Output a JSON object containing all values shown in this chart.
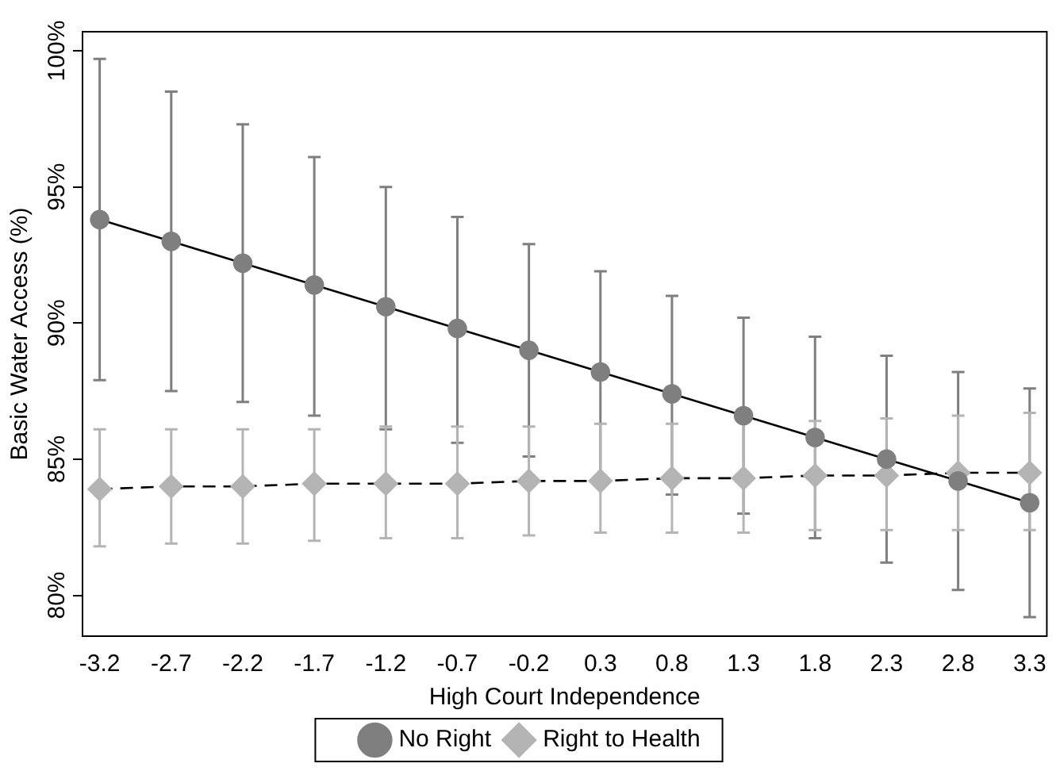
{
  "chart_data": {
    "type": "line",
    "xlabel": "High Court Independence",
    "ylabel": "Basic Water Access (%)",
    "x": [
      -3.2,
      -2.7,
      -2.2,
      -1.7,
      -1.2,
      -0.7,
      -0.2,
      0.3,
      0.8,
      1.3,
      1.8,
      2.3,
      2.8,
      3.3
    ],
    "xlim": [
      -3.32,
      3.42
    ],
    "xticks": [
      -3.2,
      -2.7,
      -2.2,
      -1.7,
      -1.2,
      -0.7,
      -0.2,
      0.3,
      0.8,
      1.3,
      1.8,
      2.3,
      2.8,
      3.3
    ],
    "ylim": [
      78.5,
      100.7
    ],
    "yticks": [
      {
        "value": 80,
        "label": "80%"
      },
      {
        "value": 85,
        "label": "85%"
      },
      {
        "value": 90,
        "label": "90%"
      },
      {
        "value": 95,
        "label": "95%"
      },
      {
        "value": 100,
        "label": "100%"
      }
    ],
    "grid": false,
    "legend": "bottom",
    "series": [
      {
        "name": "No Right",
        "color": "#7f7f7f",
        "marker": "circle",
        "line_style": "solid",
        "values": [
          93.8,
          93.0,
          92.2,
          91.4,
          90.6,
          89.8,
          89.0,
          88.2,
          87.4,
          86.6,
          85.8,
          85.0,
          84.2,
          83.4
        ],
        "errors": [
          [
            87.9,
            99.7
          ],
          [
            87.5,
            98.5
          ],
          [
            87.1,
            97.3
          ],
          [
            86.6,
            96.1
          ],
          [
            86.1,
            95.0
          ],
          [
            85.6,
            93.9
          ],
          [
            85.1,
            92.9
          ],
          [
            84.4,
            91.9
          ],
          [
            83.7,
            91.0
          ],
          [
            83.0,
            90.2
          ],
          [
            82.1,
            89.5
          ],
          [
            81.2,
            88.8
          ],
          [
            80.2,
            88.2
          ],
          [
            79.2,
            87.6
          ]
        ]
      },
      {
        "name": "Right to Health",
        "color": "#b4b4b4",
        "marker": "diamond",
        "line_style": "dashed",
        "values": [
          83.9,
          84.0,
          84.0,
          84.1,
          84.1,
          84.1,
          84.2,
          84.2,
          84.3,
          84.3,
          84.4,
          84.4,
          84.5,
          84.5
        ],
        "errors": [
          [
            81.8,
            86.1
          ],
          [
            81.9,
            86.1
          ],
          [
            81.9,
            86.1
          ],
          [
            82.0,
            86.1
          ],
          [
            82.1,
            86.2
          ],
          [
            82.1,
            86.2
          ],
          [
            82.2,
            86.2
          ],
          [
            82.3,
            86.3
          ],
          [
            82.3,
            86.3
          ],
          [
            82.3,
            86.4
          ],
          [
            82.4,
            86.4
          ],
          [
            82.4,
            86.5
          ],
          [
            82.4,
            86.6
          ],
          [
            82.4,
            86.7
          ]
        ]
      }
    ]
  }
}
